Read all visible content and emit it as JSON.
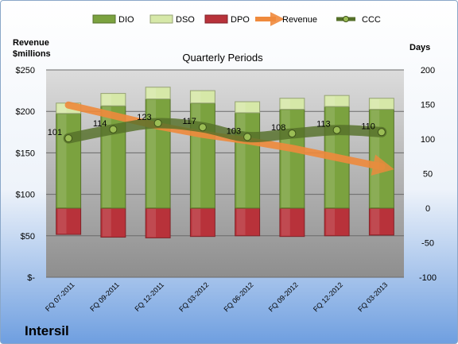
{
  "chart_data": {
    "type": "bar",
    "title": "Quarterly Periods",
    "company": "Intersil",
    "left_axis": {
      "label_line1": "Revenue",
      "label_line2": "$millions",
      "range": [
        0,
        250
      ],
      "ticks": [
        0,
        50,
        100,
        150,
        200,
        250
      ],
      "tick_labels": [
        "$-",
        "$50",
        "$100",
        "$150",
        "$200",
        "$250"
      ]
    },
    "right_axis": {
      "label": "Days",
      "range": [
        -100,
        200
      ],
      "ticks": [
        -100,
        -50,
        0,
        50,
        100,
        150,
        200
      ],
      "tick_labels": [
        "-100",
        "-50",
        "0",
        "50",
        "100",
        "150",
        "200"
      ]
    },
    "categories": [
      "FQ 07-2011",
      "FQ 09-2011",
      "FQ 12-2011",
      "FQ 03-2012",
      "FQ 06-2012",
      "FQ 09-2012",
      "FQ 12-2012",
      "FQ 03-2013"
    ],
    "series": [
      {
        "name": "DIO",
        "axis": "right",
        "color": "#7ba23f",
        "values": [
          137,
          148,
          158,
          152,
          138,
          143,
          147,
          143
        ]
      },
      {
        "name": "DSO",
        "axis": "right",
        "color": "#d6e8a8",
        "values": [
          15,
          18,
          17,
          18,
          16,
          16,
          16,
          16
        ]
      },
      {
        "name": "DPO",
        "axis": "right",
        "color": "#b8323a",
        "values": [
          -38,
          -42,
          -43,
          -41,
          -40,
          -41,
          -40,
          -39
        ]
      },
      {
        "name": "Revenue",
        "axis": "left",
        "color": "#ef8a3c",
        "values": [
          210,
          195,
          180,
          170,
          165,
          157,
          145,
          133
        ]
      },
      {
        "name": "CCC",
        "axis": "right",
        "color": "#55702a",
        "values": [
          101,
          114,
          123,
          117,
          103,
          108,
          113,
          110
        ]
      }
    ],
    "legend": [
      "DIO",
      "DSO",
      "DPO",
      "Revenue",
      "CCC"
    ],
    "legend_position": "top",
    "grid": true
  }
}
